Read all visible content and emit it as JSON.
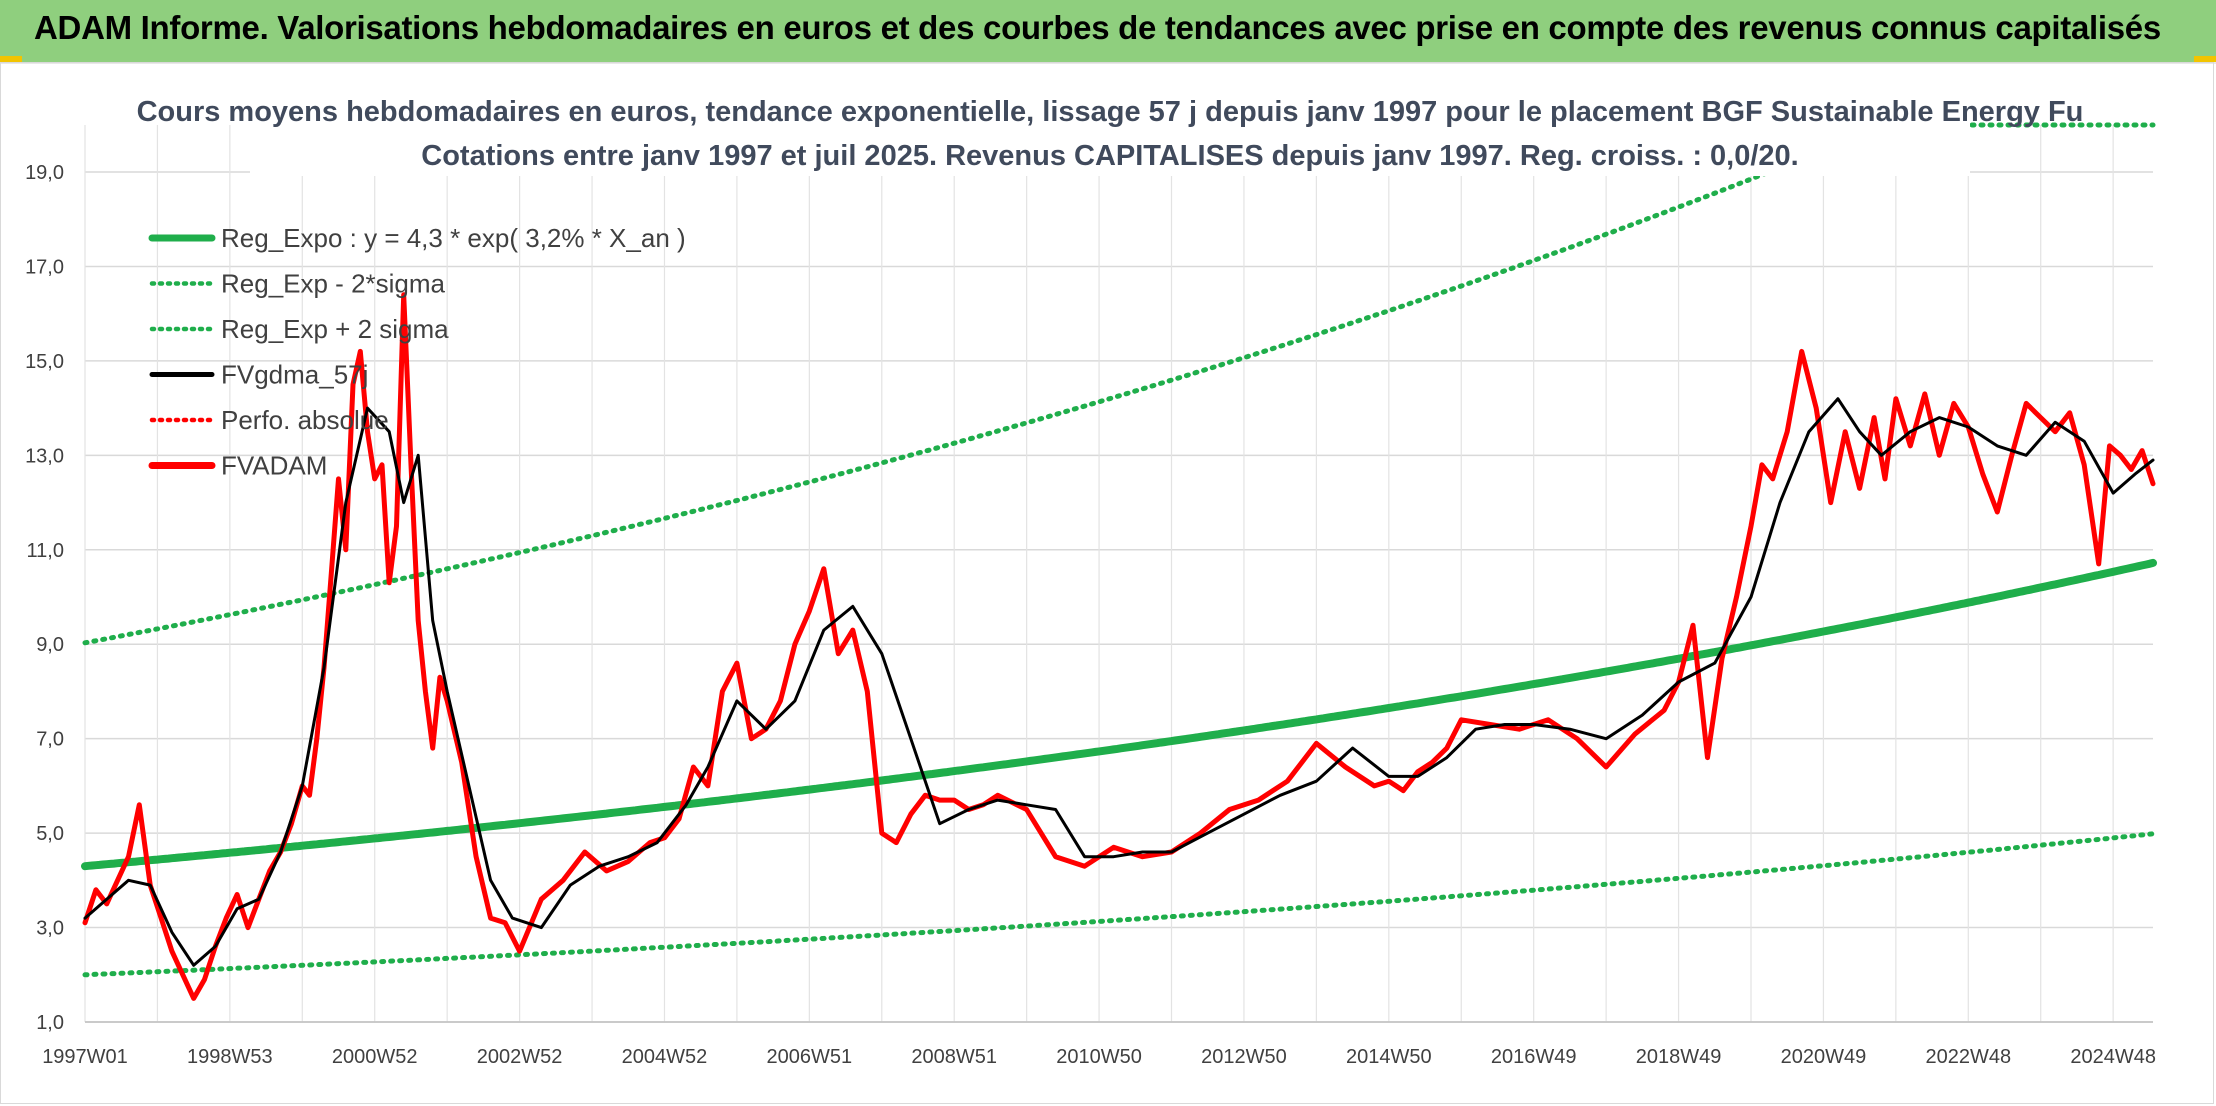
{
  "header": {
    "title": "ADAM Informe. Valorisations hebdomadaires en euros et des courbes de tendances avec prise en compte des revenus connus capitalisés"
  },
  "colors": {
    "banner": "#8fcf7e",
    "trend": "#1fae4b",
    "band": "#1fae4b",
    "gdma": "#000000",
    "fvadam": "#ff0000",
    "perfo": "#ff0000"
  },
  "chart_data": {
    "type": "line",
    "title": "Cours moyens hebdomadaires en euros, tendance exponentielle, lissage 57 j depuis janv 1997 pour le placement BGF Sustainable Energy Fu",
    "subtitle": "Cotations entre janv 1997 et juil 2025. Revenus CAPITALISES depuis janv 1997. Reg. croiss. : 0,0/20.",
    "xlabel": "",
    "ylabel": "",
    "ylim": [
      1,
      20
    ],
    "yticks": [
      "1,0",
      "3,0",
      "5,0",
      "7,0",
      "9,0",
      "11,0",
      "13,0",
      "15,0",
      "17,0",
      "19,0"
    ],
    "ytick_values": [
      1,
      3,
      5,
      7,
      9,
      11,
      13,
      15,
      17,
      19
    ],
    "xlim": [
      1997.0,
      2025.55
    ],
    "xticks": [
      "1997W01",
      "1998W53",
      "2000W52",
      "2002W52",
      "2004W52",
      "2006W51",
      "2008W51",
      "2010W50",
      "2012W50",
      "2014W50",
      "2016W49",
      "2018W49",
      "2020W49",
      "2022W48",
      "2024W48"
    ],
    "xtick_values": [
      1997.0,
      1999.0,
      2001.0,
      2003.0,
      2005.0,
      2007.0,
      2009.0,
      2011.0,
      2013.0,
      2015.0,
      2017.0,
      2019.0,
      2021.0,
      2023.0,
      2025.0
    ],
    "grid": true,
    "legend_position": "top-left",
    "legend": [
      {
        "label": "Reg_Expo : y = 4,3 * exp( 3,2% *  X_an )",
        "style": "solid-thick",
        "color": "#1fae4b"
      },
      {
        "label": "Reg_Exp - 2*sigma",
        "style": "dotted",
        "color": "#1fae4b"
      },
      {
        "label": "Reg_Exp + 2 sigma",
        "style": "dotted",
        "color": "#1fae4b"
      },
      {
        "label": "FVgdma_57j",
        "style": "solid",
        "color": "#000000"
      },
      {
        "label": "Perfo. absolue",
        "style": "dotted",
        "color": "#ff0000"
      },
      {
        "label": "FVADAM",
        "style": "solid-thick",
        "color": "#ff0000"
      }
    ],
    "regression": {
      "a": 4.3,
      "rate": 0.032,
      "lower_factor": 0.465,
      "upper_factor": 2.1
    },
    "series": [
      {
        "name": "FVADAM",
        "x": [
          1997.0,
          1997.15,
          1997.3,
          1997.45,
          1997.6,
          1997.75,
          1997.9,
          1998.05,
          1998.2,
          1998.35,
          1998.5,
          1998.65,
          1998.8,
          1998.95,
          1999.1,
          1999.25,
          1999.4,
          1999.55,
          1999.7,
          1999.85,
          2000.0,
          2000.1,
          2000.2,
          2000.3,
          2000.4,
          2000.5,
          2000.6,
          2000.7,
          2000.8,
          2000.9,
          2001.0,
          2001.1,
          2001.2,
          2001.3,
          2001.4,
          2001.5,
          2001.6,
          2001.7,
          2001.8,
          2001.9,
          2002.0,
          2002.2,
          2002.4,
          2002.6,
          2002.8,
          2003.0,
          2003.3,
          2003.6,
          2003.9,
          2004.2,
          2004.5,
          2004.8,
          2005.0,
          2005.2,
          2005.4,
          2005.6,
          2005.8,
          2006.0,
          2006.2,
          2006.4,
          2006.6,
          2006.8,
          2007.0,
          2007.2,
          2007.4,
          2007.6,
          2007.8,
          2008.0,
          2008.2,
          2008.4,
          2008.6,
          2008.8,
          2009.0,
          2009.2,
          2009.4,
          2009.6,
          2010.0,
          2010.4,
          2010.8,
          2011.2,
          2011.6,
          2012.0,
          2012.4,
          2012.8,
          2013.2,
          2013.6,
          2014.0,
          2014.4,
          2014.8,
          2015.0,
          2015.2,
          2015.4,
          2015.6,
          2015.8,
          2016.0,
          2016.4,
          2016.8,
          2017.2,
          2017.6,
          2018.0,
          2018.4,
          2018.8,
          2019.0,
          2019.2,
          2019.4,
          2019.6,
          2019.8,
          2020.0,
          2020.15,
          2020.3,
          2020.5,
          2020.7,
          2020.9,
          2021.1,
          2021.3,
          2021.5,
          2021.7,
          2021.85,
          2022.0,
          2022.2,
          2022.4,
          2022.6,
          2022.8,
          2023.0,
          2023.2,
          2023.4,
          2023.6,
          2023.8,
          2024.0,
          2024.2,
          2024.4,
          2024.6,
          2024.8,
          2024.95,
          2025.1,
          2025.25,
          2025.4,
          2025.55
        ],
        "values": [
          3.1,
          3.8,
          3.5,
          4.0,
          4.5,
          5.6,
          3.9,
          3.2,
          2.5,
          2.0,
          1.5,
          1.9,
          2.6,
          3.2,
          3.7,
          3.0,
          3.6,
          4.2,
          4.6,
          5.2,
          6.0,
          5.8,
          7.0,
          8.5,
          10.5,
          12.5,
          11.0,
          14.5,
          15.2,
          13.5,
          12.5,
          12.8,
          10.3,
          11.5,
          16.4,
          12.8,
          9.5,
          8.0,
          6.8,
          8.3,
          7.8,
          6.5,
          4.5,
          3.2,
          3.1,
          2.5,
          3.6,
          4.0,
          4.6,
          4.2,
          4.4,
          4.8,
          4.9,
          5.3,
          6.4,
          6.0,
          8.0,
          8.6,
          7.0,
          7.2,
          7.8,
          9.0,
          9.7,
          10.6,
          8.8,
          9.3,
          8.0,
          5.0,
          4.8,
          5.4,
          5.8,
          5.7,
          5.7,
          5.5,
          5.6,
          5.8,
          5.5,
          4.5,
          4.3,
          4.7,
          4.5,
          4.6,
          5.0,
          5.5,
          5.7,
          6.1,
          6.9,
          6.4,
          6.0,
          6.1,
          5.9,
          6.3,
          6.5,
          6.8,
          7.4,
          7.3,
          7.2,
          7.4,
          7.0,
          6.4,
          7.1,
          7.6,
          8.2,
          9.4,
          6.6,
          8.7,
          10.0,
          11.5,
          12.8,
          12.5,
          13.5,
          15.2,
          14.0,
          12.0,
          13.5,
          12.3,
          13.8,
          12.5,
          14.2,
          13.2,
          14.3,
          13.0,
          14.1,
          13.6,
          12.6,
          11.8,
          13.0,
          14.1,
          13.8,
          13.5,
          13.9,
          12.8,
          10.7,
          13.2,
          13.0,
          12.7,
          13.1,
          12.4
        ]
      },
      {
        "name": "FVgdma_57j",
        "x": [
          1997.0,
          1997.3,
          1997.6,
          1997.9,
          1998.2,
          1998.5,
          1998.8,
          1999.1,
          1999.4,
          1999.7,
          2000.0,
          2000.3,
          2000.6,
          2000.9,
          2001.2,
          2001.4,
          2001.6,
          2001.8,
          2002.0,
          2002.3,
          2002.6,
          2002.9,
          2003.3,
          2003.7,
          2004.1,
          2004.5,
          2004.9,
          2005.3,
          2005.6,
          2006.0,
          2006.4,
          2006.8,
          2007.2,
          2007.6,
          2008.0,
          2008.4,
          2008.8,
          2009.2,
          2009.6,
          2010.0,
          2010.4,
          2010.8,
          2011.2,
          2011.6,
          2012.0,
          2012.5,
          2013.0,
          2013.5,
          2014.0,
          2014.5,
          2015.0,
          2015.4,
          2015.8,
          2016.2,
          2016.6,
          2017.0,
          2017.5,
          2018.0,
          2018.5,
          2019.0,
          2019.5,
          2020.0,
          2020.4,
          2020.8,
          2021.2,
          2021.5,
          2021.8,
          2022.2,
          2022.6,
          2023.0,
          2023.4,
          2023.8,
          2024.2,
          2024.6,
          2025.0,
          2025.3,
          2025.55
        ],
        "values": [
          3.2,
          3.6,
          4.0,
          3.9,
          2.9,
          2.2,
          2.6,
          3.4,
          3.6,
          4.6,
          6.0,
          8.5,
          12.0,
          14.0,
          13.5,
          12.0,
          13.0,
          9.5,
          8.0,
          6.0,
          4.0,
          3.2,
          3.0,
          3.9,
          4.3,
          4.5,
          4.8,
          5.6,
          6.4,
          7.8,
          7.2,
          7.8,
          9.3,
          9.8,
          8.8,
          7.0,
          5.2,
          5.5,
          5.7,
          5.6,
          5.5,
          4.5,
          4.5,
          4.6,
          4.6,
          5.0,
          5.4,
          5.8,
          6.1,
          6.8,
          6.2,
          6.2,
          6.6,
          7.2,
          7.3,
          7.3,
          7.2,
          7.0,
          7.5,
          8.2,
          8.6,
          10.0,
          12.0,
          13.5,
          14.2,
          13.5,
          13.0,
          13.5,
          13.8,
          13.6,
          13.2,
          13.0,
          13.7,
          13.3,
          12.2,
          12.6,
          12.9
        ]
      }
    ]
  }
}
